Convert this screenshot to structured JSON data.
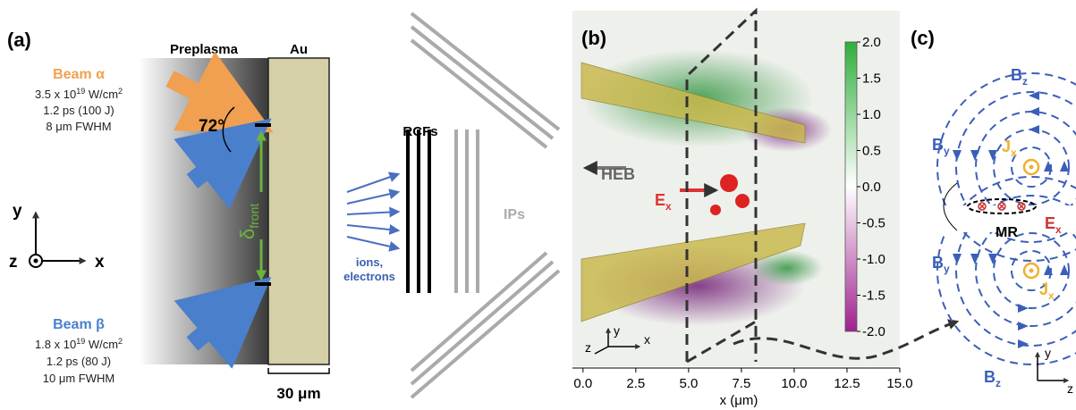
{
  "panel_a": {
    "label": "(a)",
    "beam_alpha": {
      "name": "Beam α",
      "intensity": {
        "base": "3.5 x 10",
        "exp": "19",
        "unit": " W/cm",
        "unit_exp": "2"
      },
      "duration": "1.2 ps (100 J)",
      "spot": "8 μm FWHM"
    },
    "beam_beta": {
      "name": "Beam β",
      "intensity": {
        "base": "1.8 x 10",
        "exp": "19",
        "unit": " W/cm",
        "unit_exp": "2"
      },
      "duration": "1.2 ps (80 J)",
      "spot": "10 μm FWHM"
    },
    "preplasma": "Preplasma",
    "target": "Au",
    "angle": "72°",
    "delta": {
      "symbol": "δ",
      "sub": "front"
    },
    "axes": {
      "y": "y",
      "z": "z",
      "x": "x"
    },
    "thickness": "30 μm",
    "particles": [
      "ions,",
      "electrons"
    ],
    "rcf": "RCFs",
    "ip": "IPs"
  },
  "panel_b": {
    "label": "(b)",
    "heb": "HEB",
    "field": {
      "symbol": "E",
      "sub": "x"
    },
    "xlabel": "x (μm)",
    "xlim": [
      -0.5,
      15.0
    ],
    "xticks": [
      {
        "value": 0,
        "label": "0.0"
      },
      {
        "value": 2.5,
        "label": "2.5"
      },
      {
        "value": 5,
        "label": "5.0"
      },
      {
        "value": 7.5,
        "label": "7.5"
      },
      {
        "value": 10,
        "label": "10.0"
      },
      {
        "value": 12.5,
        "label": "12.5"
      },
      {
        "value": 15,
        "label": "15.0"
      }
    ],
    "colorbar_lim": [
      -2.0,
      2.0
    ],
    "colorbar_ticks": [
      {
        "value": 2,
        "label": "2.0"
      },
      {
        "value": 1.5,
        "label": "1.5"
      },
      {
        "value": 1,
        "label": "1.0"
      },
      {
        "value": 0.5,
        "label": "0.5"
      },
      {
        "value": 0,
        "label": "0.0"
      },
      {
        "value": -0.5,
        "label": "-0.5"
      },
      {
        "value": -1,
        "label": "-1.0"
      },
      {
        "value": -1.5,
        "label": "-1.5"
      },
      {
        "value": -2,
        "label": "-2.0"
      }
    ],
    "axes": {
      "y": "y",
      "z": "z",
      "x": "x"
    }
  },
  "panel_c": {
    "label": "(c)",
    "bz_top": {
      "symbol": "B",
      "sub": "z"
    },
    "by_top": {
      "symbol": "B",
      "sub": "y"
    },
    "jx_top": {
      "symbol": "J",
      "sub": "x"
    },
    "ex": {
      "symbol": "E",
      "sub": "x"
    },
    "mr": "MR",
    "by_bottom": {
      "symbol": "B",
      "sub": "y"
    },
    "jx_bottom": {
      "symbol": "J",
      "sub": "x"
    },
    "bz_bottom": {
      "symbol": "B",
      "sub": "z"
    },
    "axes": {
      "y": "y",
      "z": "z"
    }
  }
}
